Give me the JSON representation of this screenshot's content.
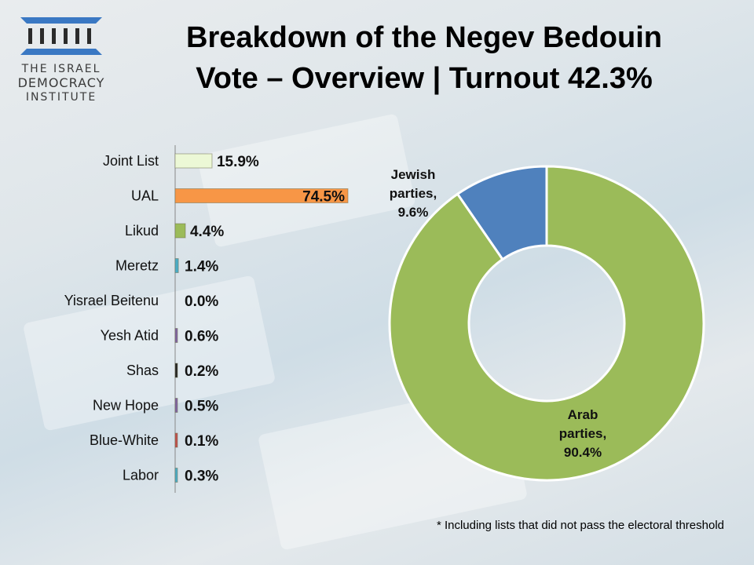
{
  "logo": {
    "line1": "THE ISRAEL",
    "line2": "DEMOCRACY",
    "line3": "INSTITUTE"
  },
  "title_line1": "Breakdown of the Negev Bedouin",
  "title_line2": "Vote – Overview | Turnout 42.3%",
  "footnote": "* Including lists that did not pass the electoral threshold",
  "chart_data": [
    {
      "type": "bar",
      "orientation": "horizontal",
      "categories": [
        "Joint List",
        "UAL",
        "Likud",
        "Meretz",
        "Yisrael Beitenu",
        "Yesh Atid",
        "Shas",
        "New Hope",
        "Blue-White",
        "Labor"
      ],
      "values": [
        15.9,
        74.5,
        4.4,
        1.4,
        0.0,
        0.6,
        0.2,
        0.5,
        0.1,
        0.3
      ],
      "labels": [
        "15.9%",
        "74.5%",
        "4.4%",
        "1.4%",
        "0.0%",
        "0.6%",
        "0.2%",
        "0.5%",
        "0.1%",
        "0.3%"
      ],
      "colors": [
        "#ecf8d6",
        "#f79646",
        "#9bbb59",
        "#4bacc6",
        "#7f7f7f",
        "#8064a2",
        "#262626",
        "#8064a2",
        "#c0504d",
        "#4bacc6"
      ],
      "xlim": [
        0,
        74.5
      ]
    },
    {
      "type": "pie",
      "donut": true,
      "categories": [
        "Jewish parties",
        "Arab parties"
      ],
      "values": [
        9.6,
        90.4
      ],
      "labels": [
        [
          "Jewish",
          "parties,",
          "9.6%"
        ],
        [
          "Arab",
          "parties,",
          "90.4%"
        ]
      ],
      "colors": [
        "#4f81bd",
        "#9bbb59"
      ]
    }
  ]
}
